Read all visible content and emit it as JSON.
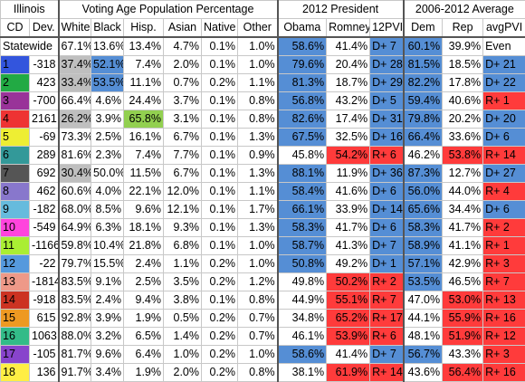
{
  "header": {
    "group_labels": [
      "Illinois",
      "Voting Age Population Percentage",
      "2012 President",
      "2006-2012 Average"
    ],
    "columns": [
      "CD",
      "Dev.",
      "White",
      "Black",
      "Hisp.",
      "Asian",
      "Native",
      "Other",
      "Obama",
      "Romney",
      "12PVI",
      "Dem",
      "Rep",
      "avgPVI"
    ]
  },
  "statewide": {
    "label": "Statewide",
    "values": [
      "67.1%",
      "13.6%",
      "13.4%",
      "4.7%",
      "0.1%",
      "1.0%",
      "58.6%",
      "41.4%",
      "D+ 7",
      "60.1%",
      "39.9%",
      "Even"
    ]
  },
  "districts": [
    {
      "cd": 1,
      "color": "#3355dd",
      "dev": -318,
      "values": [
        "37.4%",
        "52.1%",
        "7.4%",
        "2.0%",
        "0.1%",
        "1.0%",
        "79.6%",
        "20.4%",
        "D+ 28",
        "81.5%",
        "18.5%",
        "D+ 21"
      ]
    },
    {
      "cd": 2,
      "color": "#22aa44",
      "dev": 423,
      "values": [
        "33.4%",
        "53.5%",
        "11.1%",
        "0.7%",
        "0.2%",
        "1.1%",
        "81.3%",
        "18.7%",
        "D+ 29",
        "82.2%",
        "17.8%",
        "D+ 22"
      ]
    },
    {
      "cd": 3,
      "color": "#993399",
      "dev": -700,
      "values": [
        "66.4%",
        "4.6%",
        "24.4%",
        "3.7%",
        "0.1%",
        "0.8%",
        "56.8%",
        "43.2%",
        "D+ 5",
        "59.4%",
        "40.6%",
        "R+ 1"
      ]
    },
    {
      "cd": 4,
      "color": "#ee3333",
      "dev": 2161,
      "values": [
        "26.2%",
        "3.9%",
        "65.8%",
        "3.1%",
        "0.1%",
        "0.8%",
        "82.6%",
        "17.4%",
        "D+ 31",
        "79.8%",
        "20.2%",
        "D+ 20"
      ]
    },
    {
      "cd": 5,
      "color": "#eeee33",
      "dev": -69,
      "values": [
        "73.3%",
        "2.5%",
        "16.1%",
        "6.7%",
        "0.1%",
        "1.3%",
        "67.5%",
        "32.5%",
        "D+ 16",
        "66.4%",
        "33.6%",
        "D+ 6"
      ]
    },
    {
      "cd": 6,
      "color": "#339999",
      "dev": 289,
      "values": [
        "81.6%",
        "2.3%",
        "7.4%",
        "7.7%",
        "0.1%",
        "0.9%",
        "45.8%",
        "54.2%",
        "R+ 6",
        "46.2%",
        "53.8%",
        "R+ 14"
      ]
    },
    {
      "cd": 7,
      "color": "#555555",
      "dev": 692,
      "values": [
        "30.4%",
        "50.0%",
        "11.5%",
        "6.7%",
        "0.1%",
        "1.3%",
        "88.1%",
        "11.9%",
        "D+ 36",
        "87.3%",
        "12.7%",
        "D+ 27"
      ]
    },
    {
      "cd": 8,
      "color": "#8877cc",
      "dev": 462,
      "values": [
        "60.6%",
        "4.0%",
        "22.1%",
        "12.0%",
        "0.1%",
        "1.1%",
        "58.4%",
        "41.6%",
        "D+ 6",
        "56.0%",
        "44.0%",
        "R+ 4"
      ]
    },
    {
      "cd": 9,
      "color": "#66bbdd",
      "dev": -182,
      "values": [
        "68.0%",
        "8.5%",
        "9.6%",
        "12.1%",
        "0.1%",
        "1.7%",
        "66.1%",
        "33.9%",
        "D+ 14",
        "65.6%",
        "34.4%",
        "D+ 6"
      ]
    },
    {
      "cd": 10,
      "color": "#ff44dd",
      "dev": -549,
      "values": [
        "64.9%",
        "6.3%",
        "18.1%",
        "9.3%",
        "0.1%",
        "1.3%",
        "58.3%",
        "41.7%",
        "D+ 6",
        "58.3%",
        "41.7%",
        "R+ 2"
      ]
    },
    {
      "cd": 11,
      "color": "#aaee33",
      "dev": -1166,
      "values": [
        "59.8%",
        "10.4%",
        "21.8%",
        "6.8%",
        "0.1%",
        "1.0%",
        "58.7%",
        "41.3%",
        "D+ 7",
        "58.9%",
        "41.1%",
        "R+ 1"
      ]
    },
    {
      "cd": 12,
      "color": "#5599dd",
      "dev": -22,
      "values": [
        "79.7%",
        "15.5%",
        "2.4%",
        "1.1%",
        "0.2%",
        "1.0%",
        "50.8%",
        "49.2%",
        "D+ 1",
        "57.1%",
        "42.9%",
        "R+ 3"
      ]
    },
    {
      "cd": 13,
      "color": "#ee9988",
      "dev": -1814,
      "values": [
        "83.5%",
        "9.1%",
        "2.5%",
        "3.5%",
        "0.2%",
        "1.2%",
        "49.8%",
        "50.2%",
        "R+ 2",
        "53.5%",
        "46.5%",
        "R+ 7"
      ]
    },
    {
      "cd": 14,
      "color": "#cc3322",
      "dev": -918,
      "values": [
        "83.5%",
        "2.4%",
        "9.4%",
        "3.8%",
        "0.1%",
        "0.8%",
        "44.9%",
        "55.1%",
        "R+ 7",
        "47.0%",
        "53.0%",
        "R+ 13"
      ]
    },
    {
      "cd": 15,
      "color": "#ee9922",
      "dev": 615,
      "values": [
        "92.8%",
        "3.9%",
        "1.9%",
        "0.5%",
        "0.2%",
        "0.7%",
        "34.8%",
        "65.2%",
        "R+ 17",
        "44.1%",
        "55.9%",
        "R+ 16"
      ]
    },
    {
      "cd": 16,
      "color": "#33bb88",
      "dev": 1063,
      "values": [
        "88.0%",
        "3.2%",
        "6.5%",
        "1.4%",
        "0.2%",
        "0.7%",
        "46.1%",
        "53.9%",
        "R+ 6",
        "48.1%",
        "51.9%",
        "R+ 12"
      ]
    },
    {
      "cd": 17,
      "color": "#8844cc",
      "dev": -105,
      "values": [
        "81.7%",
        "9.6%",
        "6.4%",
        "1.0%",
        "0.2%",
        "1.0%",
        "58.6%",
        "41.4%",
        "D+ 7",
        "56.7%",
        "43.3%",
        "R+ 3"
      ]
    },
    {
      "cd": 18,
      "color": "#ffee44",
      "dev": 136,
      "values": [
        "91.7%",
        "3.4%",
        "1.9%",
        "2.0%",
        "0.2%",
        "0.8%",
        "38.1%",
        "61.9%",
        "R+ 14",
        "43.6%",
        "56.4%",
        "R+ 16"
      ]
    }
  ]
}
